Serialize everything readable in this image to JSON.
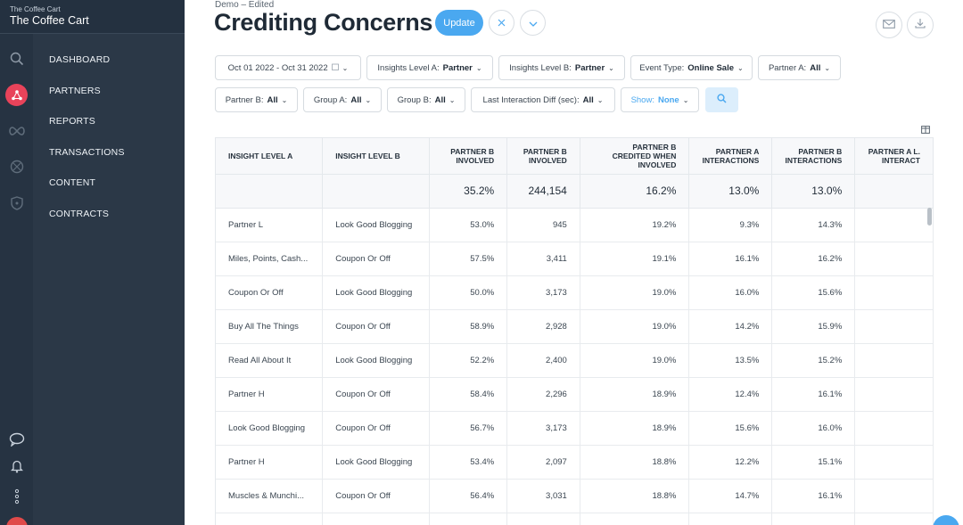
{
  "brand": {
    "org": "The Coffee Cart",
    "name": "The Coffee Cart"
  },
  "nav": {
    "items": [
      "DASHBOARD",
      "PARTNERS",
      "REPORTS",
      "TRANSACTIONS",
      "CONTENT",
      "CONTRACTS"
    ],
    "active": "PARTNERS"
  },
  "header": {
    "breadcrumb": "Demo – Edited",
    "title": "Crediting Concerns",
    "update_label": "Update"
  },
  "filters": [
    {
      "label": "Oct 01 2022 - Oct 31 2022",
      "value": ""
    },
    {
      "label": "Insights Level A:",
      "value": "Partner"
    },
    {
      "label": "Insights Level B:",
      "value": "Partner"
    },
    {
      "label": "Event Type:",
      "value": "Online Sale"
    },
    {
      "label": "Partner A:",
      "value": "All"
    },
    {
      "label": "Partner B:",
      "value": "All"
    },
    {
      "label": "Group A:",
      "value": "All"
    },
    {
      "label": "Group B:",
      "value": "All"
    },
    {
      "label": "Last Interaction Diff (sec):",
      "value": "All"
    },
    {
      "label": "Show:",
      "value": "None"
    }
  ],
  "table": {
    "columns": [
      "INSIGHT LEVEL A",
      "INSIGHT LEVEL B",
      "PARTNER B INVOLVED",
      "PARTNER B INVOLVED",
      "PARTNER B CREDITED WHEN INVOLVED",
      "PARTNER A INTERACTIONS",
      "PARTNER B INTERACTIONS",
      "PARTNER A L. INTERACT"
    ],
    "summary": [
      "",
      "",
      "35.2%",
      "244,154",
      "16.2%",
      "13.0%",
      "13.0%",
      ""
    ],
    "rows": [
      [
        "Partner L",
        "Look Good Blogging",
        "53.0%",
        "945",
        "19.2%",
        "9.3%",
        "14.3%",
        ""
      ],
      [
        "Miles, Points, Cash...",
        "Coupon Or Off",
        "57.5%",
        "3,411",
        "19.1%",
        "16.1%",
        "16.2%",
        ""
      ],
      [
        "Coupon Or Off",
        "Look Good Blogging",
        "50.0%",
        "3,173",
        "19.0%",
        "16.0%",
        "15.6%",
        ""
      ],
      [
        "Buy All The Things",
        "Coupon Or Off",
        "58.9%",
        "2,928",
        "19.0%",
        "14.2%",
        "15.9%",
        ""
      ],
      [
        "Read All About It",
        "Look Good Blogging",
        "52.2%",
        "2,400",
        "19.0%",
        "13.5%",
        "15.2%",
        ""
      ],
      [
        "Partner H",
        "Coupon Or Off",
        "58.4%",
        "2,296",
        "18.9%",
        "12.4%",
        "16.1%",
        ""
      ],
      [
        "Look Good Blogging",
        "Coupon Or Off",
        "56.7%",
        "3,173",
        "18.9%",
        "15.6%",
        "16.0%",
        ""
      ],
      [
        "Partner H",
        "Look Good Blogging",
        "53.4%",
        "2,097",
        "18.8%",
        "12.2%",
        "15.1%",
        ""
      ],
      [
        "Muscles & Munchi...",
        "Coupon Or Off",
        "56.4%",
        "3,031",
        "18.8%",
        "14.7%",
        "16.1%",
        ""
      ],
      [
        "",
        "",
        "",
        "",
        "",
        "",
        "",
        ""
      ]
    ]
  },
  "colors": {
    "sidebar": "#2b3847",
    "accent": "#4aa8f0",
    "active_nav": "#e8435a"
  }
}
